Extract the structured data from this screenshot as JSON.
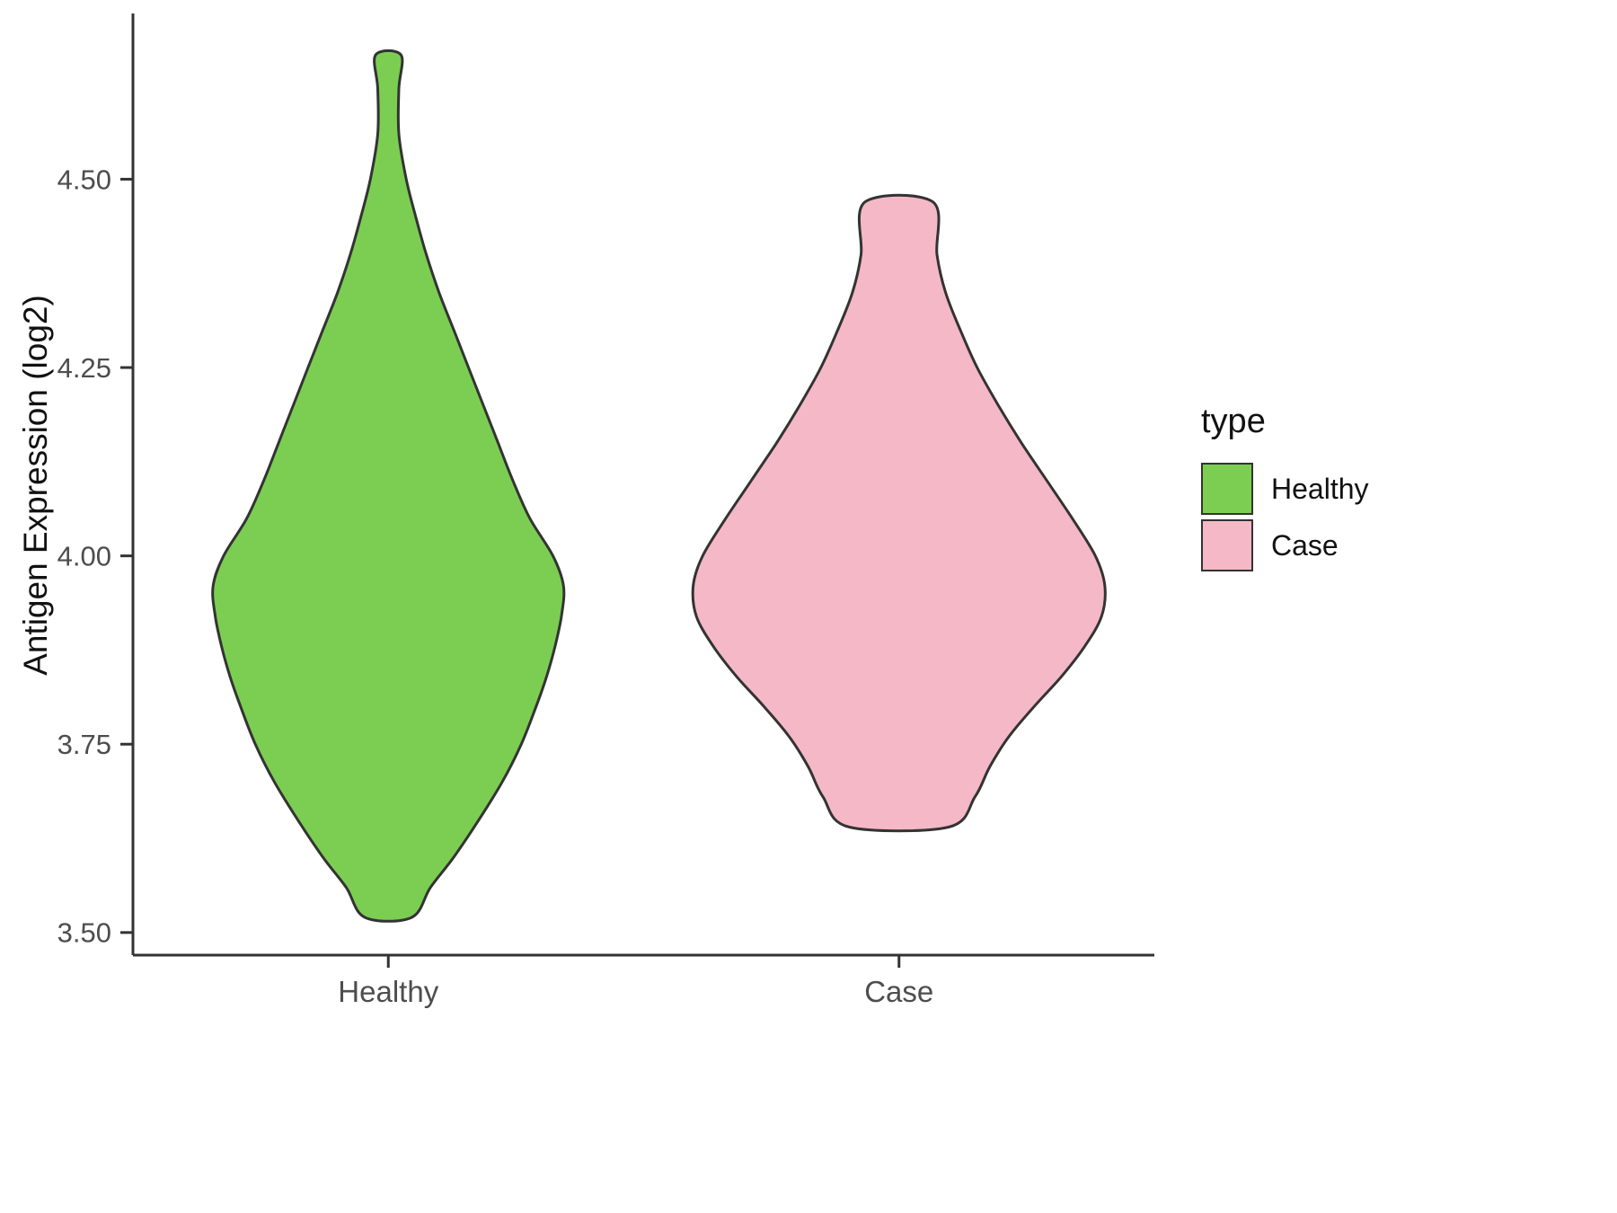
{
  "chart_data": {
    "type": "violin",
    "xlabel": "",
    "ylabel": "Antigen Expression (log2)",
    "legend_title": "type",
    "legend_position": "right",
    "categories": [
      "Healthy",
      "Case"
    ],
    "ylim": [
      3.47,
      4.72
    ],
    "yticks": [
      "3.50",
      "3.75",
      "4.00",
      "4.25",
      "4.50"
    ],
    "ytick_values": [
      3.5,
      3.75,
      4.0,
      4.25,
      4.5
    ],
    "grid": false,
    "axis_color": "#333333",
    "tick_text_color": "#4d4d4d",
    "series": [
      {
        "name": "Healthy",
        "color": "#7cce52",
        "outline": "#333333",
        "value_range": [
          3.52,
          4.66
        ],
        "peak_value": 3.96,
        "profile": [
          [
            4.665,
            0.06
          ],
          [
            4.62,
            0.05
          ],
          [
            4.56,
            0.05
          ],
          [
            4.5,
            0.085
          ],
          [
            4.45,
            0.13
          ],
          [
            4.4,
            0.18
          ],
          [
            4.35,
            0.24
          ],
          [
            4.3,
            0.31
          ],
          [
            4.25,
            0.38
          ],
          [
            4.2,
            0.45
          ],
          [
            4.15,
            0.52
          ],
          [
            4.1,
            0.59
          ],
          [
            4.05,
            0.67
          ],
          [
            4.0,
            0.78
          ],
          [
            3.96,
            0.83
          ],
          [
            3.92,
            0.82
          ],
          [
            3.88,
            0.79
          ],
          [
            3.84,
            0.75
          ],
          [
            3.8,
            0.7
          ],
          [
            3.75,
            0.63
          ],
          [
            3.7,
            0.54
          ],
          [
            3.65,
            0.43
          ],
          [
            3.6,
            0.31
          ],
          [
            3.56,
            0.2
          ],
          [
            3.52,
            0.11
          ]
        ]
      },
      {
        "name": "Case",
        "color": "#f5b8c6",
        "outline": "#333333",
        "value_range": [
          3.64,
          4.47
        ],
        "peak_value": 3.96,
        "profile": [
          [
            4.47,
            0.16
          ],
          [
            4.4,
            0.18
          ],
          [
            4.35,
            0.22
          ],
          [
            4.3,
            0.29
          ],
          [
            4.25,
            0.37
          ],
          [
            4.2,
            0.47
          ],
          [
            4.15,
            0.58
          ],
          [
            4.1,
            0.7
          ],
          [
            4.05,
            0.82
          ],
          [
            4.0,
            0.93
          ],
          [
            3.96,
            0.975
          ],
          [
            3.92,
            0.96
          ],
          [
            3.88,
            0.88
          ],
          [
            3.84,
            0.77
          ],
          [
            3.8,
            0.64
          ],
          [
            3.76,
            0.52
          ],
          [
            3.72,
            0.43
          ],
          [
            3.68,
            0.36
          ],
          [
            3.64,
            0.235
          ]
        ]
      }
    ]
  }
}
